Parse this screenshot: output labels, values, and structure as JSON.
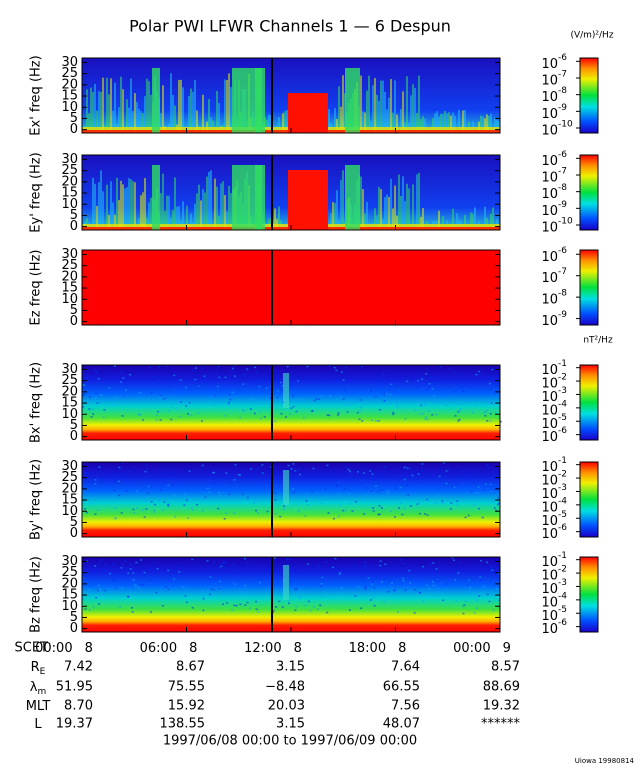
{
  "title": "Polar PWI LFWR Channels 1 — 6 Despun",
  "electric_units": "(V/m)²/Hz",
  "magnetic_units": "nT²/Hz",
  "panels": [
    {
      "ylabel": "Ex' freq (Hz)",
      "ylim": [
        -1.5,
        32
      ],
      "yticks": [
        0,
        5,
        10,
        15,
        20,
        25,
        30
      ],
      "colorbar": {
        "base": "10",
        "lim": [
          -10.3,
          -5.8
        ],
        "ticks": [
          -6,
          -7,
          -8,
          -9,
          -10
        ]
      }
    },
    {
      "ylabel": "Ey' freq (Hz)",
      "ylim": [
        -1.5,
        32
      ],
      "yticks": [
        0,
        5,
        10,
        15,
        20,
        25,
        30
      ],
      "colorbar": {
        "base": "10",
        "lim": [
          -10.3,
          -5.8
        ],
        "ticks": [
          -6,
          -7,
          -8,
          -9,
          -10
        ]
      }
    },
    {
      "ylabel": "Ez freq (Hz)",
      "ylim": [
        -1.5,
        32
      ],
      "yticks": [
        0,
        5,
        10,
        15,
        20,
        25,
        30
      ],
      "colorbar": {
        "base": "10",
        "lim": [
          -9.3,
          -5.8
        ],
        "ticks": [
          -6,
          -7,
          -8,
          -9
        ]
      }
    },
    {
      "ylabel": "Bx' freq (Hz)",
      "ylim": [
        -1.5,
        32
      ],
      "yticks": [
        0,
        5,
        10,
        15,
        20,
        25,
        30
      ],
      "colorbar": {
        "base": "10",
        "lim": [
          -6.4,
          -0.8
        ],
        "ticks": [
          -1,
          -2,
          -3,
          -4,
          -5,
          -6
        ]
      }
    },
    {
      "ylabel": "By' freq (Hz)",
      "ylim": [
        -1.5,
        32
      ],
      "yticks": [
        0,
        5,
        10,
        15,
        20,
        25,
        30
      ],
      "colorbar": {
        "base": "10",
        "lim": [
          -6.4,
          -0.8
        ],
        "ticks": [
          -1,
          -2,
          -3,
          -4,
          -5,
          -6
        ]
      }
    },
    {
      "ylabel": "Bz freq (Hz)",
      "ylim": [
        -1.5,
        32
      ],
      "yticks": [
        0,
        5,
        10,
        15,
        20,
        25,
        30
      ],
      "colorbar": {
        "base": "10",
        "lim": [
          -6.4,
          -0.8
        ],
        "ticks": [
          -1,
          -2,
          -3,
          -4,
          -5,
          -6
        ]
      }
    }
  ],
  "x_axis": {
    "prefix": "SCET",
    "ticks": [
      {
        "time": "00:00",
        "day": "8"
      },
      {
        "time": "06:00",
        "day": "8"
      },
      {
        "time": "12:00",
        "day": "8"
      },
      {
        "time": "18:00",
        "day": "8"
      },
      {
        "time": "00:00",
        "day": "9"
      }
    ]
  },
  "ephemeris": [
    {
      "label": "R",
      "sub": "E",
      "values": [
        "7.42",
        "8.67",
        "3.15",
        "7.64",
        "8.57"
      ]
    },
    {
      "label": "λ",
      "sub": "m",
      "values": [
        "51.95",
        "75.55",
        "−8.48",
        "66.55",
        "88.69"
      ]
    },
    {
      "label": "MLT",
      "values": [
        "8.70",
        "15.92",
        "20.03",
        "7.56",
        "19.32"
      ]
    },
    {
      "label": "L",
      "values": [
        "19.37",
        "138.55",
        "3.15",
        "48.07",
        "******"
      ]
    }
  ],
  "date_range": "1997/06/08 00:00 to 1997/06/09 00:00",
  "credit": "Uiowa 19980814"
}
